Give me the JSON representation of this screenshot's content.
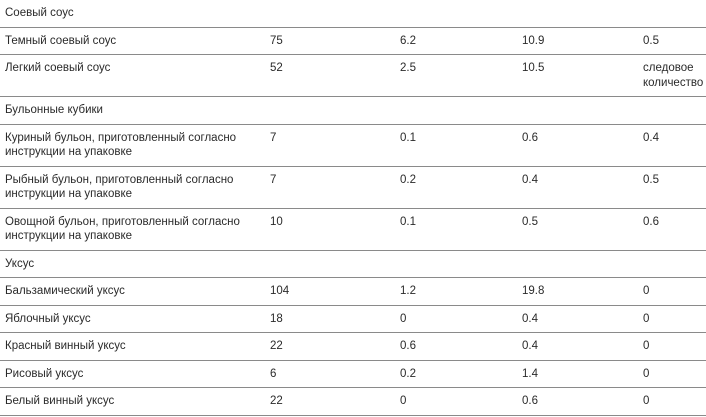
{
  "table": {
    "sections": [
      {
        "title": "Соевый соус",
        "rows": [
          [
            "Темный соевый соус",
            "75",
            "6.2",
            "10.9",
            "0.5"
          ],
          [
            "Легкий соевый соус",
            "52",
            "2.5",
            "10.5",
            "следовое количество"
          ]
        ]
      },
      {
        "title": "Бульонные кубики",
        "rows": [
          [
            "Куриный бульон, приготовленный согласно инструкции на упаковке",
            "7",
            "0.1",
            "0.6",
            "0.4"
          ],
          [
            "Рыбный бульон, приготовленный согласно инструкции на упаковке",
            "7",
            "0.2",
            "0.4",
            "0.5"
          ],
          [
            "Овощной бульон, приготовленный согласно инструкции на упаковке",
            "10",
            "0.1",
            "0.5",
            "0.6"
          ]
        ]
      },
      {
        "title": "Уксус",
        "rows": [
          [
            "Бальзамический уксус",
            "104",
            "1.2",
            "19.8",
            "0"
          ],
          [
            "Яблочный уксус",
            "18",
            "0",
            "0.4",
            "0"
          ],
          [
            "Красный винный уксус",
            "22",
            "0.6",
            "0.4",
            "0"
          ],
          [
            "Рисовый уксус",
            "6",
            "0.2",
            "1.4",
            "0"
          ],
          [
            "Белый винный уксус",
            "22",
            "0",
            "0.6",
            "0"
          ]
        ]
      }
    ]
  }
}
